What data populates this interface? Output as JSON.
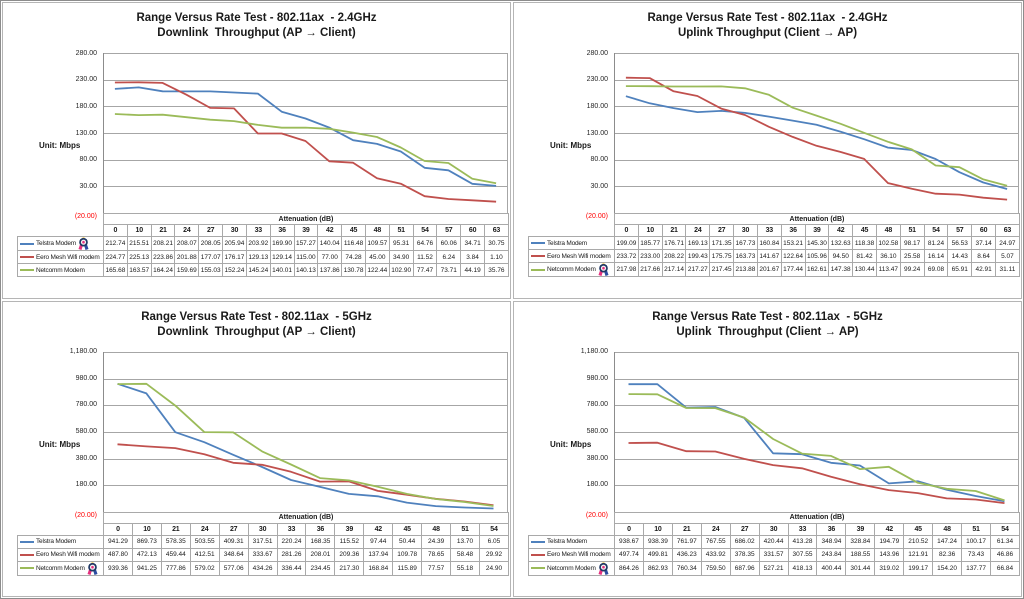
{
  "colors": {
    "telstra": "#4F81BD",
    "eero": "#C0504D",
    "netcomm": "#9BBB59",
    "negative_tick": "#FF0000",
    "gridline": "#A6A6A6"
  },
  "chart_data": [
    {
      "type": "line",
      "title": "Range Versus Rate Test - 802.11ax  - 2.4GHz",
      "subtitle": "Downlink  Throughput (AP → Client)",
      "unit_label": "Unit: Mbps",
      "xlabel": "Attenuation (dB)",
      "grid": true,
      "legend_position": "table-left",
      "ylim": [
        -20,
        280
      ],
      "ytick_labels": [
        "280.00",
        "230.00",
        "180.00",
        "130.00",
        "80.00",
        "30.00",
        "(20.00)"
      ],
      "categories": [
        "0",
        "10",
        "21",
        "24",
        "27",
        "30",
        "33",
        "36",
        "39",
        "42",
        "45",
        "48",
        "51",
        "54",
        "57",
        "60",
        "63"
      ],
      "series": [
        {
          "name": "Telstra Modem",
          "color_key": "telstra",
          "award": true,
          "values": [
            "212.74",
            "215.51",
            "208.21",
            "208.07",
            "208.05",
            "205.94",
            "203.92",
            "169.90",
            "157.27",
            "140.04",
            "116.48",
            "109.57",
            "95.31",
            "64.76",
            "60.06",
            "34.71",
            "30.75"
          ]
        },
        {
          "name": "Eero Mesh Wifi modem",
          "color_key": "eero",
          "award": false,
          "values": [
            "224.77",
            "225.13",
            "223.86",
            "201.88",
            "177.07",
            "176.17",
            "129.13",
            "129.14",
            "115.00",
            "77.00",
            "74.28",
            "45.00",
            "34.90",
            "11.52",
            "6.24",
            "3.84",
            "1.10"
          ]
        },
        {
          "name": "Netcomm Modem",
          "color_key": "netcomm",
          "award": false,
          "values": [
            "165.68",
            "163.57",
            "164.24",
            "159.69",
            "155.03",
            "152.24",
            "145.24",
            "140.01",
            "140.13",
            "137.86",
            "130.78",
            "122.44",
            "102.90",
            "77.47",
            "73.71",
            "44.19",
            "35.76"
          ]
        }
      ]
    },
    {
      "type": "line",
      "title": "Range Versus Rate Test - 802.11ax  - 2.4GHz",
      "subtitle": "Uplink Throughput (Client → AP)",
      "unit_label": "Unit: Mbps",
      "xlabel": "Attenuation (dB)",
      "grid": true,
      "legend_position": "table-left",
      "ylim": [
        -20,
        280
      ],
      "ytick_labels": [
        "280.00",
        "230.00",
        "180.00",
        "130.00",
        "80.00",
        "30.00",
        "(20.00)"
      ],
      "categories": [
        "0",
        "10",
        "21",
        "24",
        "27",
        "30",
        "33",
        "36",
        "39",
        "42",
        "45",
        "48",
        "51",
        "54",
        "57",
        "60",
        "63"
      ],
      "series": [
        {
          "name": "Telstra Modem",
          "color_key": "telstra",
          "award": false,
          "values": [
            "199.09",
            "185.77",
            "176.71",
            "169.13",
            "171.35",
            "167.73",
            "160.84",
            "153.21",
            "145.30",
            "132.63",
            "118.38",
            "102.58",
            "98.17",
            "81.24",
            "56.53",
            "37.14",
            "24.97"
          ]
        },
        {
          "name": "Eero Mesh Wifi modem",
          "color_key": "eero",
          "award": false,
          "values": [
            "233.72",
            "233.00",
            "208.22",
            "199.43",
            "175.75",
            "163.73",
            "141.67",
            "122.64",
            "105.96",
            "94.50",
            "81.42",
            "36.10",
            "25.58",
            "16.14",
            "14.43",
            "8.64",
            "5.07"
          ]
        },
        {
          "name": "Netcomm Modem",
          "color_key": "netcomm",
          "award": true,
          "values": [
            "217.98",
            "217.66",
            "217.14",
            "217.27",
            "217.45",
            "213.88",
            "201.67",
            "177.44",
            "162.61",
            "147.38",
            "130.44",
            "113.47",
            "99.24",
            "69.08",
            "65.91",
            "42.91",
            "31.11"
          ]
        }
      ]
    },
    {
      "type": "line",
      "title": "Range Versus Rate Test - 802.11ax  - 5GHz",
      "subtitle": "Downlink  Throughput (AP → Client)",
      "unit_label": "Unit: Mbps",
      "xlabel": "Attenuation (dB)",
      "grid": true,
      "legend_position": "table-left",
      "ylim": [
        -20,
        1180
      ],
      "ytick_labels": [
        "1,180.00",
        "980.00",
        "780.00",
        "580.00",
        "380.00",
        "180.00",
        "(20.00)"
      ],
      "categories": [
        "0",
        "10",
        "21",
        "24",
        "27",
        "30",
        "33",
        "36",
        "39",
        "42",
        "45",
        "48",
        "51",
        "54"
      ],
      "series": [
        {
          "name": "Telstra Modem",
          "color_key": "telstra",
          "award": false,
          "values": [
            "941.29",
            "869.73",
            "578.35",
            "503.55",
            "409.31",
            "317.51",
            "220.24",
            "168.35",
            "115.52",
            "97.44",
            "50.44",
            "24.39",
            "13.70",
            "6.05"
          ]
        },
        {
          "name": "Eero Mesh Wifi modem",
          "color_key": "eero",
          "award": false,
          "values": [
            "487.80",
            "472.13",
            "459.44",
            "412.51",
            "348.64",
            "333.67",
            "281.26",
            "208.01",
            "209.36",
            "137.94",
            "109.78",
            "78.65",
            "58.48",
            "29.92"
          ]
        },
        {
          "name": "Netcomm Modem",
          "color_key": "netcomm",
          "award": true,
          "values": [
            "939.36",
            "941.25",
            "777.86",
            "579.02",
            "577.06",
            "434.26",
            "336.44",
            "234.45",
            "217.30",
            "168.84",
            "115.89",
            "77.57",
            "55.18",
            "24.90"
          ]
        }
      ]
    },
    {
      "type": "line",
      "title": "Range Versus Rate Test - 802.11ax  - 5GHz",
      "subtitle": "Uplink  Throughput (Client → AP)",
      "unit_label": "Unit: Mbps",
      "xlabel": "Attenuation (dB)",
      "grid": true,
      "legend_position": "table-left",
      "ylim": [
        -20,
        1180
      ],
      "ytick_labels": [
        "1,180.00",
        "980.00",
        "780.00",
        "580.00",
        "380.00",
        "180.00",
        "(20.00)"
      ],
      "categories": [
        "0",
        "10",
        "21",
        "24",
        "27",
        "30",
        "33",
        "36",
        "39",
        "42",
        "45",
        "48",
        "51",
        "54"
      ],
      "series": [
        {
          "name": "Telstra Modem",
          "color_key": "telstra",
          "award": false,
          "values": [
            "938.67",
            "938.39",
            "761.97",
            "767.55",
            "686.02",
            "420.44",
            "413.28",
            "348.94",
            "328.84",
            "194.79",
            "210.52",
            "147.24",
            "100.17",
            "61.34"
          ]
        },
        {
          "name": "Eero Mesh Wifi modem",
          "color_key": "eero",
          "award": false,
          "values": [
            "497.74",
            "499.81",
            "436.23",
            "433.92",
            "378.35",
            "331.57",
            "307.55",
            "243.84",
            "188.55",
            "143.96",
            "121.91",
            "82.36",
            "73.43",
            "46.86"
          ]
        },
        {
          "name": "Netcomm Modem",
          "color_key": "netcomm",
          "award": true,
          "values": [
            "864.26",
            "862.93",
            "760.34",
            "759.50",
            "687.96",
            "527.21",
            "418.13",
            "400.44",
            "301.44",
            "319.02",
            "199.17",
            "154.20",
            "137.77",
            "66.84"
          ]
        }
      ]
    }
  ]
}
